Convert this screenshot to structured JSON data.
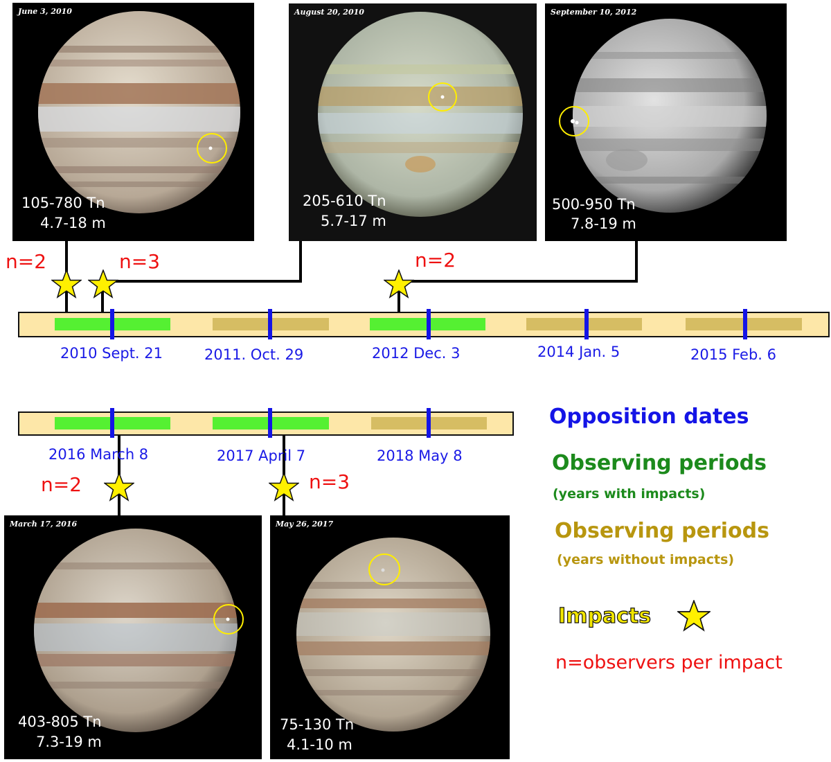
{
  "panels": {
    "p1": {
      "date": "June 3, 2010",
      "mass": "105-780 Tn",
      "size": "4.7-18 m"
    },
    "p2": {
      "date": "August 20, 2010",
      "mass": "205-610 Tn",
      "size": "5.7-17 m"
    },
    "p3": {
      "date": "September 10, 2012",
      "mass": "500-950 Tn",
      "size": "7.8-19 m"
    },
    "p4": {
      "date": "March 17, 2016",
      "mass": "403-805 Tn",
      "size": "7.3-19 m"
    },
    "p5": {
      "date": "May 26, 2017",
      "mass": "75-130 Tn",
      "size": "4.1-10 m"
    }
  },
  "timeline_top": {
    "dates": [
      "2010 Sept. 21",
      "2011. Oct. 29",
      "2012 Dec. 3",
      "2014 Jan. 5",
      "2015 Feb. 6"
    ],
    "periods": [
      "with",
      "without",
      "with",
      "without",
      "without"
    ]
  },
  "timeline_bottom": {
    "dates": [
      "2016 March 8",
      "2017 April 7",
      "2018 May 8"
    ],
    "periods": [
      "with",
      "with",
      "without"
    ]
  },
  "observers": {
    "n1": "n=2",
    "n2": "n=3",
    "n3": "n=2",
    "n4": "n=2",
    "n5": "n=3"
  },
  "legend": {
    "opposition": "Opposition dates",
    "obs_with": "Observing periods",
    "obs_with_sub": "(years with impacts)",
    "obs_without": "Observing periods",
    "obs_without_sub": "(years without impacts)",
    "impacts": "Impacts",
    "n_note": "n=observers per impact"
  },
  "colors": {
    "opposition": "#1414e6",
    "with_impacts": "#55f032",
    "without_impacts": "#d6bd63",
    "bar_bg": "#fde7a8",
    "observers": "#ee1111",
    "star": "#fff000",
    "impact_circle": "#ffee00"
  }
}
